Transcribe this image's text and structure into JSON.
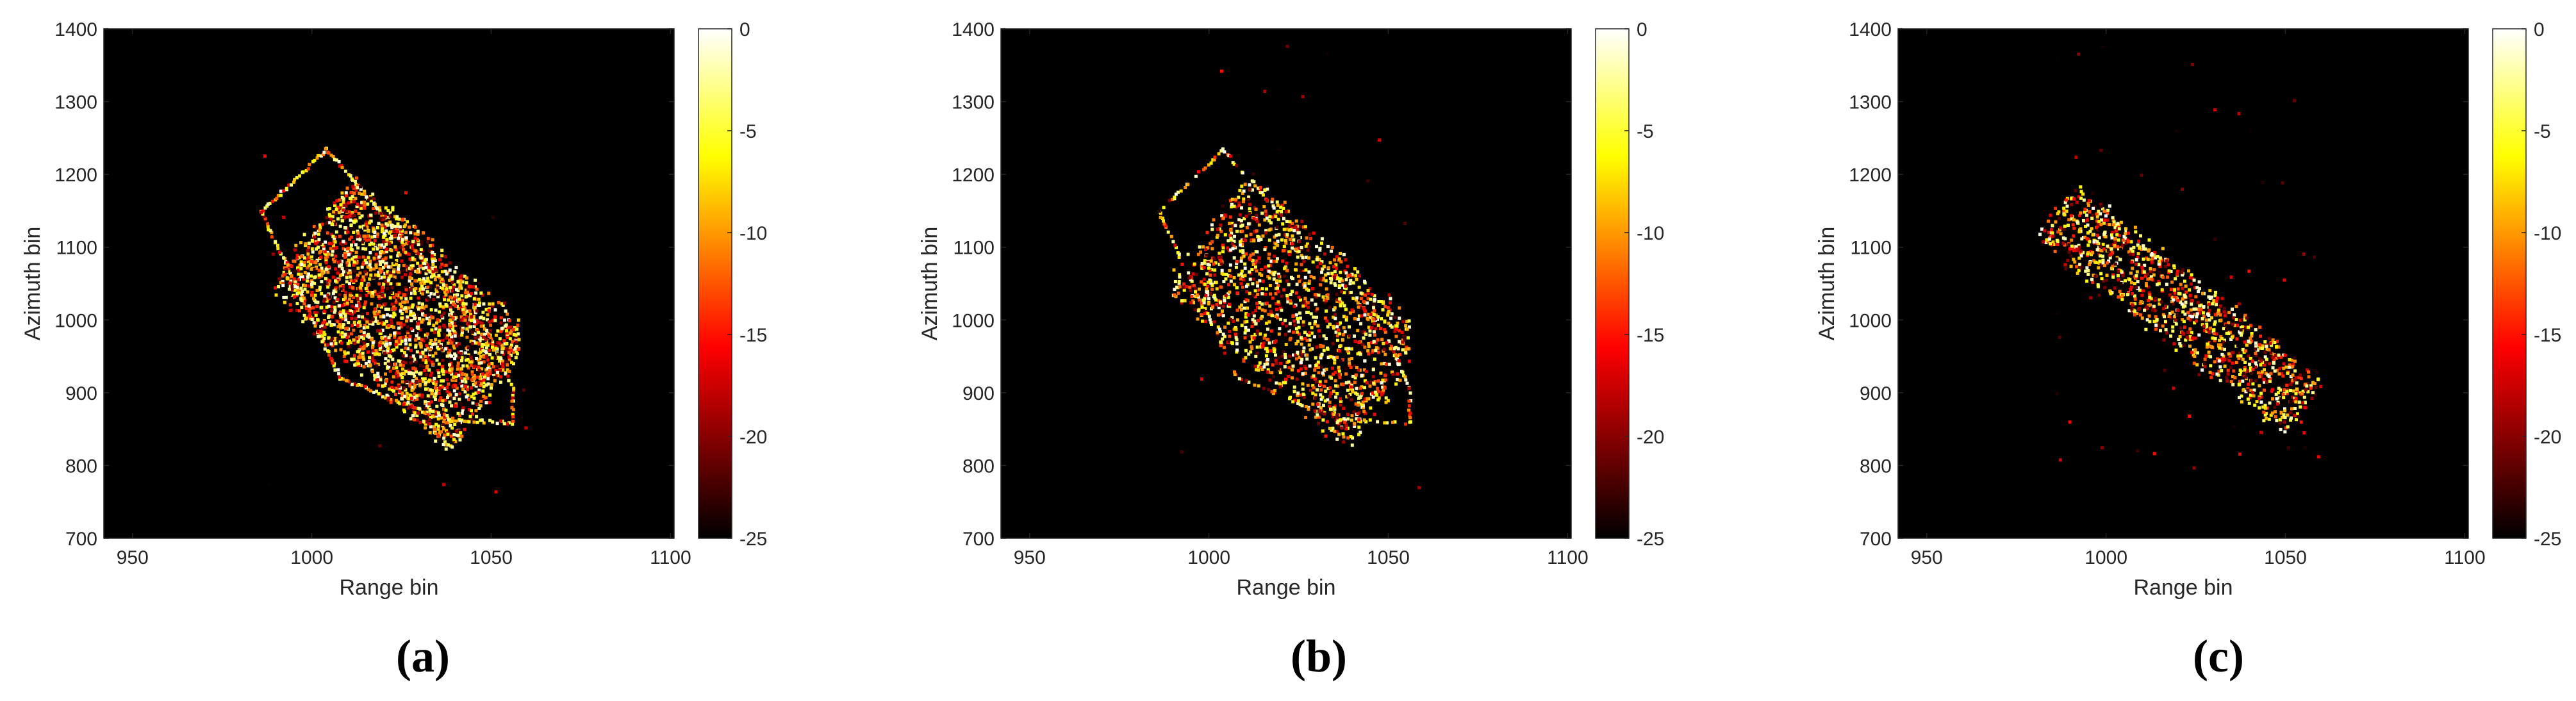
{
  "figure": {
    "panel_captions": [
      "(a)",
      "(b)",
      "(c)"
    ]
  },
  "chart_data": [
    {
      "type": "heatmap",
      "caption": "(a)",
      "xlabel": "Range bin",
      "ylabel": "Azimuth bin",
      "xlim": [
        942,
        1101
      ],
      "ylim": [
        700,
        1400
      ],
      "xticks": [
        950,
        1000,
        1050,
        1100
      ],
      "yticks": [
        700,
        800,
        900,
        1000,
        1100,
        1200,
        1300,
        1400
      ],
      "colorbar": {
        "range": [
          -25,
          0
        ],
        "ticks": [
          0,
          -5,
          -10,
          -15,
          -20,
          -25
        ],
        "colormap": "hot"
      },
      "background_value": -25,
      "structure": "ship hull outline with dense interior scatterers",
      "dense_region": {
        "range_bin": [
          995,
          1054
        ],
        "azimuth_bin": [
          880,
          1150
        ]
      },
      "outline_vertices": [
        [
          986,
          1148
        ],
        [
          1004,
          1234
        ],
        [
          1049,
          982
        ],
        [
          1056,
          905
        ],
        [
          1056,
          858
        ],
        [
          1036,
          864
        ],
        [
          1008,
          920
        ],
        [
          986,
          1148
        ]
      ]
    },
    {
      "type": "heatmap",
      "caption": "(b)",
      "xlabel": "Range bin",
      "ylabel": "Azimuth bin",
      "xlim": [
        942,
        1101
      ],
      "ylim": [
        700,
        1400
      ],
      "xticks": [
        950,
        1000,
        1050,
        1100
      ],
      "yticks": [
        700,
        800,
        900,
        1000,
        1100,
        1200,
        1300,
        1400
      ],
      "colorbar": {
        "range": [
          -25,
          0
        ],
        "ticks": [
          0,
          -5,
          -10,
          -15,
          -20,
          -25
        ],
        "colormap": "hot"
      },
      "background_value": -25,
      "structure": "ship hull outline with sparser interior scatterers",
      "dense_region": {
        "range_bin": [
          1000,
          1052
        ],
        "azimuth_bin": [
          890,
          1170
        ]
      },
      "outline_vertices": [
        [
          986,
          1148
        ],
        [
          1004,
          1234
        ],
        [
          1049,
          982
        ],
        [
          1056,
          905
        ],
        [
          1056,
          858
        ],
        [
          1036,
          864
        ],
        [
          1008,
          920
        ],
        [
          986,
          1148
        ]
      ]
    },
    {
      "type": "heatmap",
      "caption": "(c)",
      "xlabel": "Range bin",
      "ylabel": "Azimuth bin",
      "xlim": [
        942,
        1101
      ],
      "ylim": [
        700,
        1400
      ],
      "xticks": [
        950,
        1000,
        1050,
        1100
      ],
      "yticks": [
        700,
        800,
        900,
        1000,
        1100,
        1200,
        1300,
        1400
      ],
      "colorbar": {
        "range": [
          -25,
          0
        ],
        "ticks": [
          0,
          -5,
          -10,
          -15,
          -20,
          -25
        ],
        "colormap": "hot"
      },
      "background_value": -25,
      "structure": "diagonal band of scatterers, outline largely absent",
      "dense_region": {
        "range_bin": [
          990,
          1056
        ],
        "azimuth_bin": [
          820,
          1160
        ]
      },
      "outline_vertices": []
    }
  ]
}
